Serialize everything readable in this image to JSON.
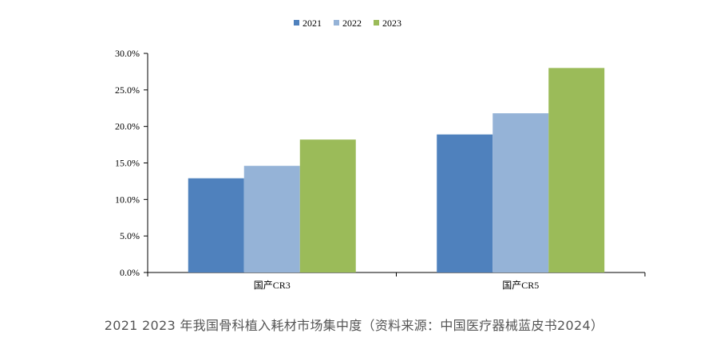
{
  "chart_data": {
    "type": "bar",
    "categories": [
      "国产CR3",
      "国产CR5"
    ],
    "series": [
      {
        "name": "2021",
        "values": [
          12.9,
          18.9
        ],
        "color": "#4F81BD"
      },
      {
        "name": "2022",
        "values": [
          14.6,
          21.8
        ],
        "color": "#95B3D7"
      },
      {
        "name": "2023",
        "values": [
          18.2,
          28.0
        ],
        "color": "#9BBB59"
      }
    ],
    "ylim": [
      0,
      30
    ],
    "yticks": [
      "0.0%",
      "5.0%",
      "10.0%",
      "15.0%",
      "20.0%",
      "25.0%",
      "30.0%"
    ],
    "yunit": "%",
    "grid": false,
    "legend": "top-center"
  },
  "caption": "2021 2023 年我国骨科植入耗材市场集中度（资料来源：中国医疗器械蓝皮书2024）"
}
